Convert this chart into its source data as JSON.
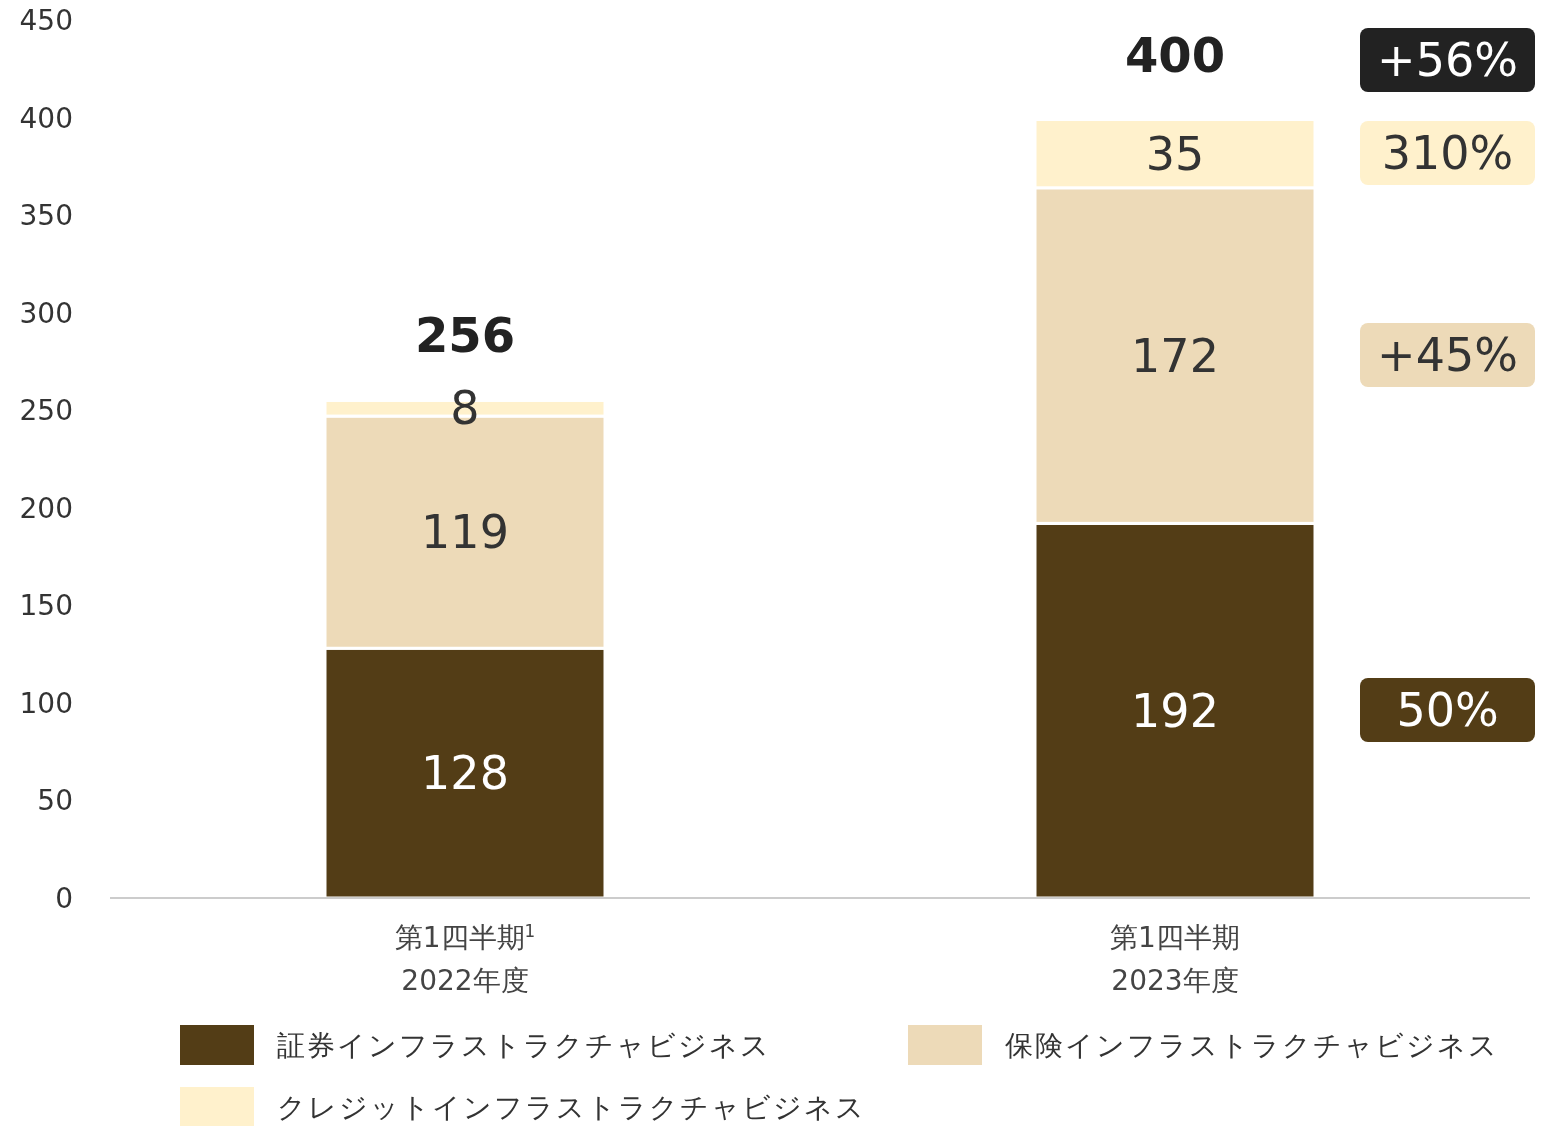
{
  "chart_data": {
    "type": "bar",
    "stacked": true,
    "categories": [
      "第1四半期$^{1}$\n2022年度",
      "第1四半期\n2023年度"
    ],
    "series": [
      {
        "name": "証券インフラストラクチャビジネス",
        "color": "#533d16",
        "values": [
          128,
          192
        ]
      },
      {
        "name": "保険インフラストラクチャビジネス",
        "color": "#eddab8",
        "values": [
          119,
          172
        ]
      },
      {
        "name": "クレジットインフラストラクチャビジネス",
        "color": "#fff1cc",
        "values": [
          8,
          35
        ]
      }
    ],
    "totals": [
      "256",
      "400"
    ],
    "data_labels": true,
    "annotations": [
      "+56%",
      "310%",
      "+45%",
      "50%"
    ],
    "ylim": [
      0,
      450
    ],
    "yticks": [
      0,
      50,
      100,
      150,
      200,
      250,
      300,
      350,
      400,
      450
    ],
    "grid": false,
    "legend": "bottom"
  }
}
